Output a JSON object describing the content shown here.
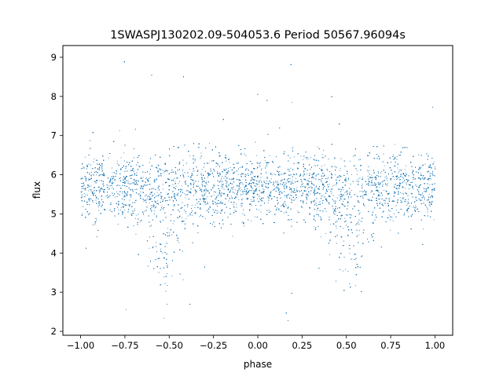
{
  "chart_data": {
    "type": "scatter",
    "title": "1SWASPJ130202.09-504053.6 Period 50567.96094s",
    "xlabel": "phase",
    "ylabel": "flux",
    "xlim": [
      -1.1,
      1.1
    ],
    "ylim": [
      1.9,
      9.3
    ],
    "xticks": [
      -1.0,
      -0.75,
      -0.5,
      -0.25,
      0.0,
      0.25,
      0.5,
      0.75,
      1.0
    ],
    "xtick_labels": [
      "−1.00",
      "−0.75",
      "−0.50",
      "−0.25",
      "0.00",
      "0.25",
      "0.50",
      "0.75",
      "1.00"
    ],
    "yticks": [
      2,
      3,
      4,
      5,
      6,
      7,
      8,
      9
    ],
    "ytick_labels": [
      "2",
      "3",
      "4",
      "5",
      "6",
      "7",
      "8",
      "9"
    ],
    "grid": false,
    "legend": null,
    "marker_color": "#1f77b4",
    "description_of_data": {
      "x_range": [
        -1.0,
        1.0
      ],
      "baseline_flux_median": 5.7,
      "baseline_flux_typical_spread": [
        4.7,
        6.8
      ],
      "dip_phases": [
        -0.52,
        0.52
      ],
      "dip_min_flux_typical": 3.6,
      "outlier_flux_range": [
        2.2,
        9.0
      ]
    },
    "sample_points": {
      "x": [
        -1.0,
        -0.9,
        -0.8,
        -0.7,
        -0.6,
        -0.52,
        -0.45,
        -0.35,
        -0.25,
        -0.1,
        0.0,
        0.1,
        0.25,
        0.35,
        0.45,
        0.52,
        0.6,
        0.7,
        0.8,
        0.9,
        1.0
      ],
      "y_median": [
        5.7,
        5.75,
        5.7,
        5.6,
        5.2,
        4.9,
        5.1,
        5.5,
        5.7,
        5.75,
        5.7,
        5.75,
        5.7,
        5.5,
        5.1,
        4.9,
        5.2,
        5.6,
        5.7,
        5.75,
        5.7
      ],
      "y_low_envelope": [
        4.5,
        4.6,
        4.5,
        4.3,
        3.9,
        3.5,
        3.8,
        4.3,
        4.6,
        4.8,
        4.7,
        4.8,
        4.6,
        4.3,
        3.8,
        3.5,
        3.9,
        4.3,
        4.5,
        4.6,
        4.5
      ],
      "y_high_envelope": [
        6.9,
        6.9,
        6.9,
        6.8,
        6.7,
        6.6,
        6.7,
        6.8,
        6.9,
        6.9,
        6.9,
        6.9,
        6.9,
        6.8,
        6.7,
        6.6,
        6.7,
        6.8,
        6.9,
        6.9,
        6.9
      ]
    }
  }
}
